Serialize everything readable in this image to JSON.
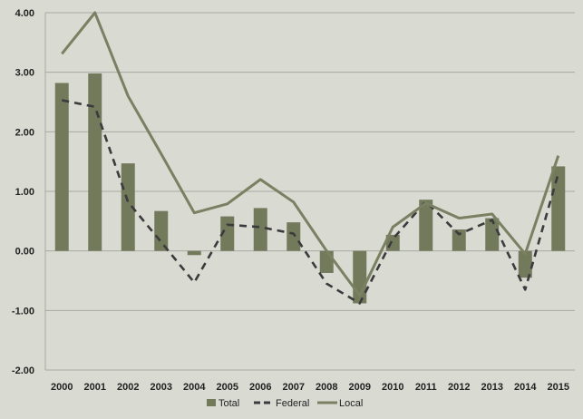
{
  "chart_data": {
    "type": "bar",
    "title": "",
    "xlabel": "",
    "ylabel": "",
    "ylim": [
      -2,
      4
    ],
    "yticks": [
      "-2.00",
      "-1.00",
      "0.00",
      "1.00",
      "2.00",
      "3.00",
      "4.00"
    ],
    "ytick_values": [
      -2,
      -1,
      0,
      1,
      2,
      3,
      4
    ],
    "grid": true,
    "legend_position": "bottom",
    "categories": [
      "2000",
      "2001",
      "2002",
      "2003",
      "2004",
      "2005",
      "2006",
      "2007",
      "2008",
      "2009",
      "2010",
      "2011",
      "2012",
      "2013",
      "2014",
      "2015"
    ],
    "series": [
      {
        "name": "Total",
        "kind": "bar",
        "color": "#737a5c",
        "values": [
          2.82,
          2.98,
          1.47,
          0.67,
          -0.07,
          0.58,
          0.72,
          0.48,
          -0.37,
          -0.88,
          0.27,
          0.86,
          0.36,
          0.55,
          -0.45,
          1.42
        ]
      },
      {
        "name": "Federal",
        "kind": "line-dashed",
        "color": "#3b3b3d",
        "values": [
          2.53,
          2.42,
          0.82,
          0.15,
          -0.53,
          0.44,
          0.4,
          0.29,
          -0.55,
          -0.88,
          0.2,
          0.83,
          0.28,
          0.52,
          -0.65,
          1.3
        ]
      },
      {
        "name": "Local",
        "kind": "line",
        "color": "#7a8062",
        "values": [
          3.31,
          4.0,
          2.6,
          1.63,
          0.64,
          0.79,
          1.2,
          0.82,
          0.0,
          -0.75,
          0.4,
          0.8,
          0.55,
          0.62,
          -0.05,
          1.6
        ]
      }
    ]
  }
}
